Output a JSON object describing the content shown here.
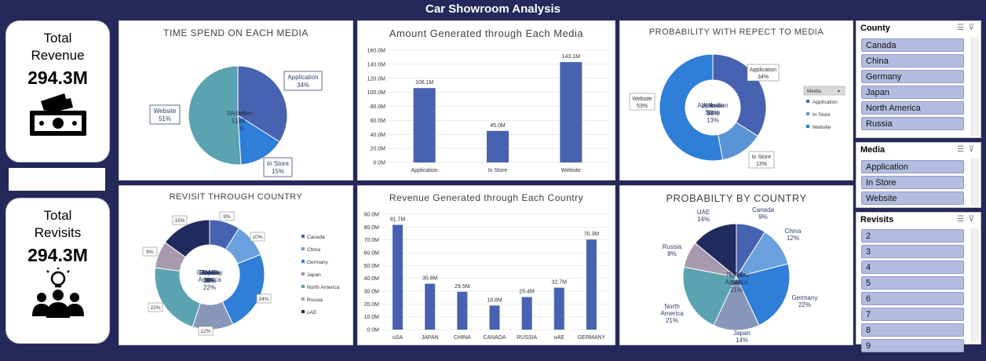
{
  "page_title": "Car Showroom Analysis",
  "kpi_revenue": {
    "label_line1": "Total",
    "label_line2": "Revenue",
    "value": "294.3M"
  },
  "kpi_revisits": {
    "label_line1": "Total",
    "label_line2": "Revisits",
    "value": "294.3M"
  },
  "panels": {
    "time_spend": {
      "title": "TIME SPEND ON EACH MEDIA"
    },
    "amount_media": {
      "title": "Amount Generated through Each Media"
    },
    "probability_media": {
      "title": "PROBABILITY   WITH  REPECT TO  MEDIA",
      "legend_title": "Media"
    },
    "revisit_country": {
      "title": "REVISIT   THROUGH   COUNTRY"
    },
    "revenue_country": {
      "title": "Revenue Generated through Each Country"
    },
    "probability_country": {
      "title": "PROBABILTY BY COUNTRY"
    }
  },
  "chart_data": [
    {
      "type": "pie",
      "title": "TIME SPEND ON EACH MEDIA",
      "slices": [
        {
          "label": "Application",
          "pct_label": "34%",
          "value": 34,
          "color": "#4762b0"
        },
        {
          "label": "In Store",
          "pct_label": "15%",
          "value": 15,
          "color": "#2f7ed8"
        },
        {
          "label": "Website",
          "pct_label": "51%",
          "value": 51,
          "color": "#5ba3b0"
        }
      ]
    },
    {
      "type": "bar",
      "title": "Amount Generated through Each Media",
      "categories": [
        "Application",
        "In Store",
        "Website"
      ],
      "values": [
        106.1,
        45.0,
        143.1
      ],
      "data_labels": [
        "106.1M",
        "45.0M",
        "143.1M"
      ],
      "y_ticks": [
        "0.0M",
        "20.0M",
        "40.0M",
        "60.0M",
        "80.0M",
        "100.0M",
        "120.0M",
        "140.0M",
        "160.0M"
      ],
      "ylim": [
        0,
        160
      ],
      "grid": true,
      "color": "#4762b0"
    },
    {
      "type": "pie",
      "donut": true,
      "title": "PROBABILITY   WITH  REPECT TO  MEDIA",
      "legend": {
        "title": "Media",
        "placement": "right",
        "entries": [
          "Application",
          "In Store",
          "Website"
        ]
      },
      "slices": [
        {
          "label": "Application",
          "pct_label": "34%",
          "value": 34,
          "color": "#4762b0"
        },
        {
          "label": "In Store",
          "pct_label": "13%",
          "value": 13,
          "color": "#5a93d6"
        },
        {
          "label": "Website",
          "pct_label": "53%",
          "value": 53,
          "color": "#2f7ed8"
        }
      ]
    },
    {
      "type": "pie",
      "donut": true,
      "title": "REVISIT   THROUGH   COUNTRY",
      "legend": {
        "placement": "right",
        "entries": [
          "Canada",
          "China",
          "Germany",
          "Japan",
          "North America",
          "Russia",
          "uAE"
        ]
      },
      "slices": [
        {
          "label": "Canada",
          "pct_label": "9%",
          "value": 9,
          "color": "#4762b0"
        },
        {
          "label": "China",
          "pct_label": "10%",
          "value": 10,
          "color": "#6aa0dd"
        },
        {
          "label": "Germany",
          "pct_label": "24%",
          "value": 24,
          "color": "#2f7ed8"
        },
        {
          "label": "Japan",
          "pct_label": "12%",
          "value": 12,
          "color": "#8896b8"
        },
        {
          "label": "North America",
          "pct_label": "22%",
          "value": 22,
          "color": "#5ba3b0"
        },
        {
          "label": "Russia",
          "pct_label": "8%",
          "value": 8,
          "color": "#a89aae"
        },
        {
          "label": "uAE",
          "pct_label": "15%",
          "value": 15,
          "color": "#1f2b5c"
        }
      ]
    },
    {
      "type": "bar",
      "title": "Revenue Generated through Each Country",
      "categories": [
        "uSA",
        "JAPAN",
        "CHINA",
        "CANADA",
        "RUSSIA",
        "uAE",
        "GERMANY"
      ],
      "values": [
        81.7,
        35.8,
        29.5,
        18.8,
        25.4,
        32.7,
        70.3
      ],
      "data_labels": [
        "81.7M",
        "35.8M",
        "29.5M",
        "18.8M",
        "25.4M",
        "32.7M",
        "70.3M"
      ],
      "y_ticks": [
        "0.0M",
        "10.0M",
        "20.0M",
        "30.0M",
        "40.0M",
        "50.0M",
        "60.0M",
        "70.0M",
        "80.0M",
        "90.0M"
      ],
      "ylim": [
        0,
        90
      ],
      "grid": true,
      "color": "#4762b0"
    },
    {
      "type": "pie",
      "title": "PROBABILTY BY COUNTRY",
      "slices": [
        {
          "label": "Canada",
          "pct_label": "9%",
          "value": 9,
          "color": "#4762b0"
        },
        {
          "label": "China",
          "pct_label": "12%",
          "value": 12,
          "color": "#6aa0dd"
        },
        {
          "label": "Germany",
          "pct_label": "22%",
          "value": 22,
          "color": "#2f7ed8"
        },
        {
          "label": "Japan",
          "pct_label": "14%",
          "value": 14,
          "color": "#8896b8"
        },
        {
          "label": "North America",
          "pct_label": "21%",
          "value": 21,
          "color": "#5ba3b0"
        },
        {
          "label": "Russia",
          "pct_label": "8%",
          "value": 8,
          "color": "#a89aae"
        },
        {
          "label": "UAE",
          "pct_label": "14%",
          "value": 14,
          "color": "#1f2b5c"
        }
      ]
    }
  ],
  "slicers": {
    "county": {
      "title": "County",
      "items": [
        "Canada",
        "China",
        "Germany",
        "Japan",
        "North America",
        "Russia"
      ]
    },
    "media": {
      "title": "Media",
      "items": [
        "Application",
        "In Store",
        "Website"
      ]
    },
    "revisits": {
      "title": "Revisits",
      "items": [
        "2",
        "3",
        "4",
        "5",
        "6",
        "7",
        "8",
        "9"
      ]
    }
  },
  "icons": {
    "slicer_multiselect": "multi-select-icon",
    "slicer_clear": "clear-filter-icon",
    "money": "money-icon",
    "people": "people-idea-icon"
  }
}
